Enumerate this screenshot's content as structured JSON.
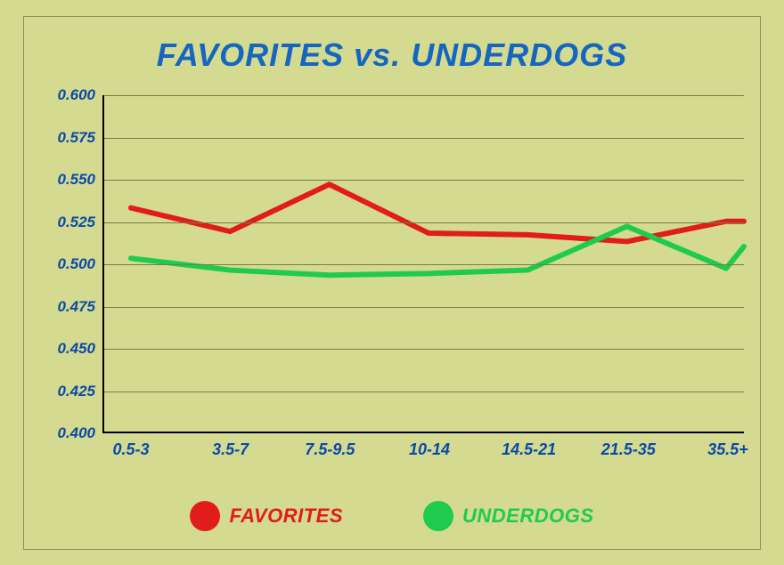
{
  "chart": {
    "type": "line",
    "title": "FAVORITES vs. UNDERDOGS",
    "title_color": "#1566c0",
    "title_fontsize": 36,
    "background_color": "#d4da90",
    "panel_border_color": "#8a8f5a",
    "axis_color": "#000000",
    "grid_color": "#7a7a4a",
    "ylim": [
      0.4,
      0.6
    ],
    "ytick_step": 0.025,
    "yticks": [
      "0.400",
      "0.425",
      "0.450",
      "0.475",
      "0.500",
      "0.525",
      "0.550",
      "0.575",
      "0.600"
    ],
    "ylabel_color": "#0a4aa8",
    "ylabel_fontsize": 17,
    "categories": [
      "0.5-3",
      "3.5-7",
      "7.5-9.5",
      "10-14",
      "14.5-21",
      "21.5-35",
      "35.5+"
    ],
    "xlabel_color": "#0a4aa8",
    "xlabel_fontsize": 18,
    "line_width": 6,
    "series": [
      {
        "name": "FAVORITES",
        "color": "#e21b1b",
        "values": [
          0.533,
          0.519,
          0.547,
          0.518,
          0.517,
          0.513,
          0.525
        ]
      },
      {
        "name": "UNDERDOGS",
        "color": "#1ecb4f",
        "values": [
          0.503,
          0.496,
          0.493,
          0.494,
          0.496,
          0.522,
          0.497
        ]
      }
    ],
    "series_last_offset": [
      0.525,
      0.51
    ],
    "legend_fontsize": 22
  }
}
